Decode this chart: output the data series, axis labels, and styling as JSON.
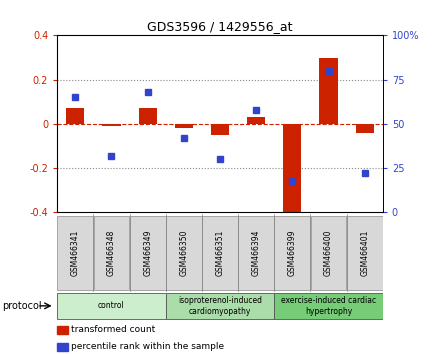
{
  "title": "GDS3596 / 1429556_at",
  "samples": [
    "GSM466341",
    "GSM466348",
    "GSM466349",
    "GSM466350",
    "GSM466351",
    "GSM466394",
    "GSM466399",
    "GSM466400",
    "GSM466401"
  ],
  "transformed_count": [
    0.07,
    -0.01,
    0.07,
    -0.02,
    -0.05,
    0.03,
    -0.42,
    0.3,
    -0.04
  ],
  "percentile_rank": [
    65,
    32,
    68,
    42,
    30,
    58,
    18,
    80,
    22
  ],
  "bar_color": "#cc2200",
  "dot_color": "#3344cc",
  "ylim_left": [
    -0.4,
    0.4
  ],
  "ylim_right": [
    0,
    100
  ],
  "yticks_left": [
    -0.4,
    -0.2,
    0.0,
    0.2,
    0.4
  ],
  "yticks_right": [
    0,
    25,
    50,
    75,
    100
  ],
  "dotted_lines": [
    -0.2,
    0.2
  ],
  "groups": [
    {
      "label": "control",
      "indices": [
        0,
        1,
        2
      ],
      "color": "#cceecc"
    },
    {
      "label": "isoproterenol-induced\ncardiomyopathy",
      "indices": [
        3,
        4,
        5
      ],
      "color": "#aaddaa"
    },
    {
      "label": "exercise-induced cardiac\nhypertrophy",
      "indices": [
        6,
        7,
        8
      ],
      "color": "#77cc77"
    }
  ],
  "protocol_label": "protocol",
  "legend_items": [
    {
      "label": "transformed count",
      "color": "#cc2200"
    },
    {
      "label": "percentile rank within the sample",
      "color": "#3344cc"
    }
  ],
  "fig_width": 4.4,
  "fig_height": 3.54,
  "dpi": 100
}
